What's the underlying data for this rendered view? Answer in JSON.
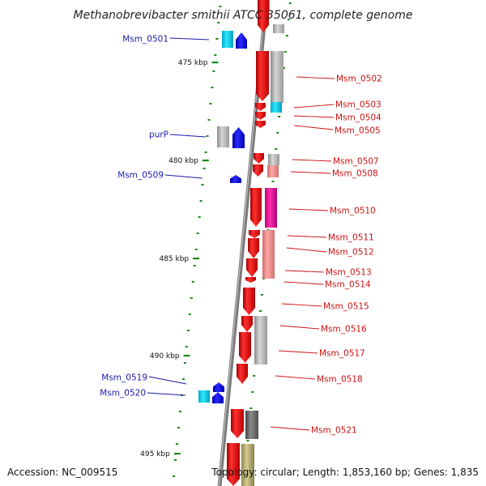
{
  "title": "Methanobrevibacter smithii ATCC 35061, complete genome",
  "footer": {
    "accession": "Accession: NC_009515",
    "topology": "Topology: circular; Length: 1,853,160 bp; Genes: 1,835"
  },
  "colors": {
    "backbone": "#7a7a7a",
    "tick": "#1a8a1a",
    "reverse_strand_gene": "#1010dd",
    "forward_strand_gene": "#ee1111",
    "label_reverse": "#1a1aaa",
    "label_forward": "#cc1111"
  },
  "ticks": [
    "475 kbp",
    "480 kbp",
    "485 kbp",
    "490 kbp",
    "495 kbp"
  ],
  "gene_labels_left": [
    "Msm_0501",
    "purP",
    "Msm_0509",
    "Msm_0519",
    "Msm_0520"
  ],
  "gene_labels_right": [
    "Msm_0502",
    "Msm_0503",
    "Msm_0504",
    "Msm_0505",
    "Msm_0507",
    "Msm_0508",
    "Msm_0510",
    "Msm_0511",
    "Msm_0512",
    "Msm_0513",
    "Msm_0514",
    "Msm_0515",
    "Msm_0516",
    "Msm_0517",
    "Msm_0518",
    "Msm_0521"
  ]
}
